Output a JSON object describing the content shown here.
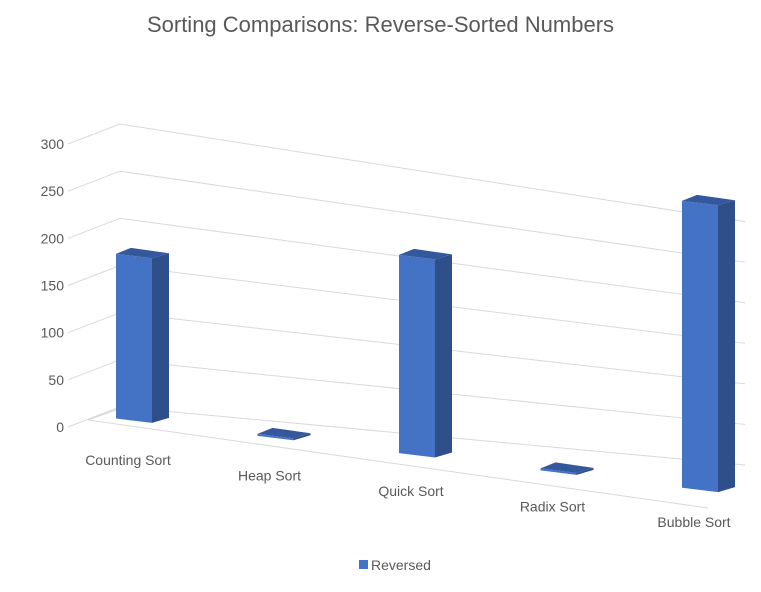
{
  "chart_data": {
    "type": "bar",
    "title": "Sorting Comparisons: Reverse-Sorted Numbers",
    "categories": [
      "Counting Sort",
      "Heap Sort",
      "Quick Sort",
      "Radix Sort",
      "Bubble Sort"
    ],
    "series": [
      {
        "name": "Reversed",
        "values": [
          182,
          2,
          219,
          0,
          317
        ]
      }
    ],
    "ylim": [
      0,
      300
    ],
    "yticks": [
      0,
      50,
      100,
      150,
      200,
      250,
      300
    ],
    "grid": true,
    "legend_position": "bottom",
    "colors": {
      "front": "#4472c4",
      "side": "#2f4f8a",
      "top": "#35589c"
    }
  }
}
